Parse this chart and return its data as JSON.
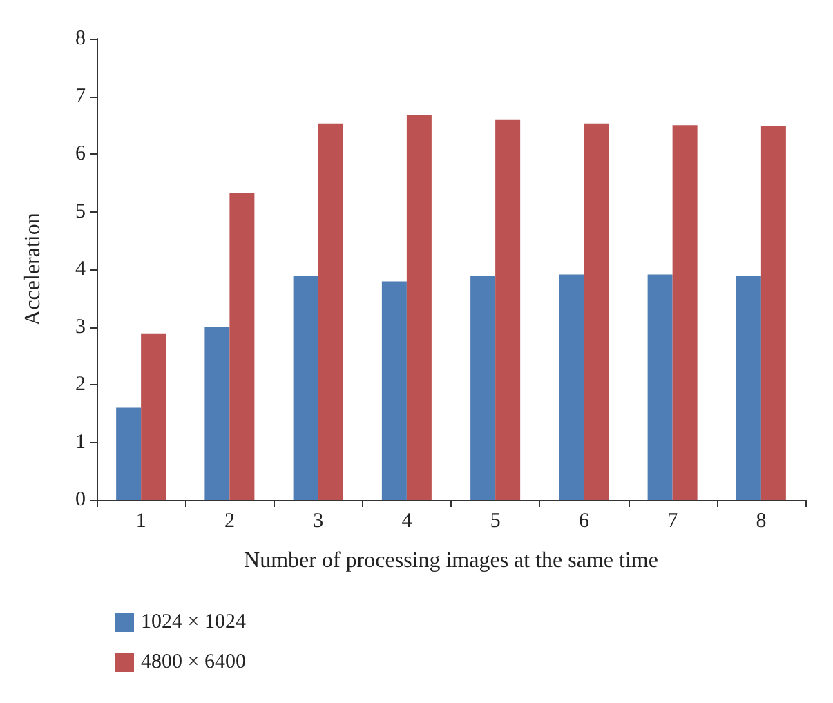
{
  "chart_data": {
    "type": "bar",
    "xlabel": "Number of processing images at the same time",
    "ylabel": "Acceleration",
    "categories": [
      "1",
      "2",
      "3",
      "4",
      "5",
      "6",
      "7",
      "8"
    ],
    "series": [
      {
        "name": "1024 × 1024",
        "color": "#4f7db5",
        "values": [
          1.6,
          3.0,
          3.88,
          3.79,
          3.88,
          3.91,
          3.91,
          3.89
        ]
      },
      {
        "name": "4800 × 6400",
        "color": "#bc5352",
        "values": [
          2.89,
          5.32,
          6.53,
          6.68,
          6.59,
          6.53,
          6.5,
          6.49
        ]
      }
    ],
    "ylim": [
      0,
      8
    ],
    "yticks": [
      0,
      1,
      2,
      3,
      4,
      5,
      6,
      7,
      8
    ],
    "grid": false,
    "legend": "bottom left"
  }
}
